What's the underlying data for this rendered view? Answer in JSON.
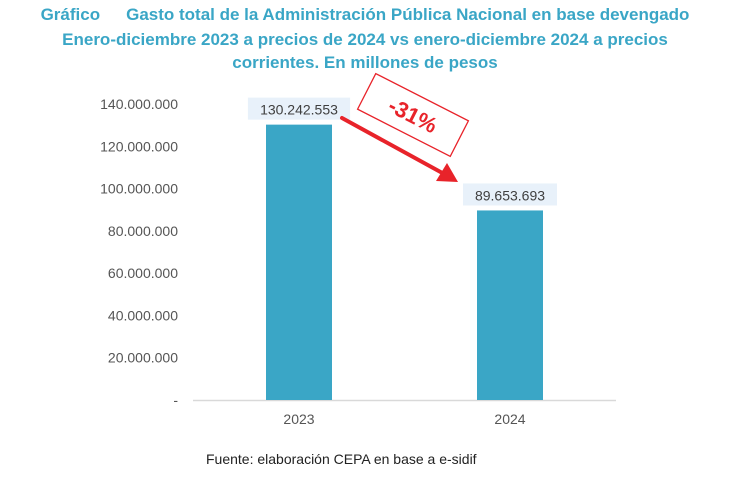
{
  "header": {
    "label": "Gráfico",
    "title_line1": "Gasto total de la Administración Pública Nacional en base devengado",
    "title_line2": "Enero-diciembre 2023 a precios de 2024 vs enero-diciembre 2024 a precios",
    "title_line3": "corrientes. En millones de pesos"
  },
  "colors": {
    "bar": "#3aa6c6",
    "title": "#3aa6c6",
    "annotation": "#e8232a",
    "label_bg": "#e8f1fa"
  },
  "chart_data": {
    "type": "bar",
    "title": "Gasto total de la Administración Pública Nacional en base devengado. Enero-diciembre 2023 a precios de 2024 vs enero-diciembre 2024 a precios corrientes. En millones de pesos",
    "categories": [
      "2023",
      "2024"
    ],
    "values": [
      130242553,
      89653693
    ],
    "data_labels": [
      "130.242.553",
      "89.653.693"
    ],
    "xlabel": "",
    "ylabel": "",
    "ylim": [
      0,
      140000000
    ],
    "yticks": [
      0,
      20000000,
      40000000,
      60000000,
      80000000,
      100000000,
      120000000,
      140000000
    ],
    "ytick_labels": [
      "-",
      "20.000.000",
      "40.000.000",
      "60.000.000",
      "80.000.000",
      "100.000.000",
      "120.000.000",
      "140.000.000"
    ],
    "grid": false,
    "legend": "none",
    "annotations": [
      {
        "text": "-31%",
        "type": "arrow",
        "from": "2023",
        "to": "2024"
      }
    ]
  },
  "footer": {
    "source": "Fuente: elaboración CEPA en base a e-sidif"
  }
}
